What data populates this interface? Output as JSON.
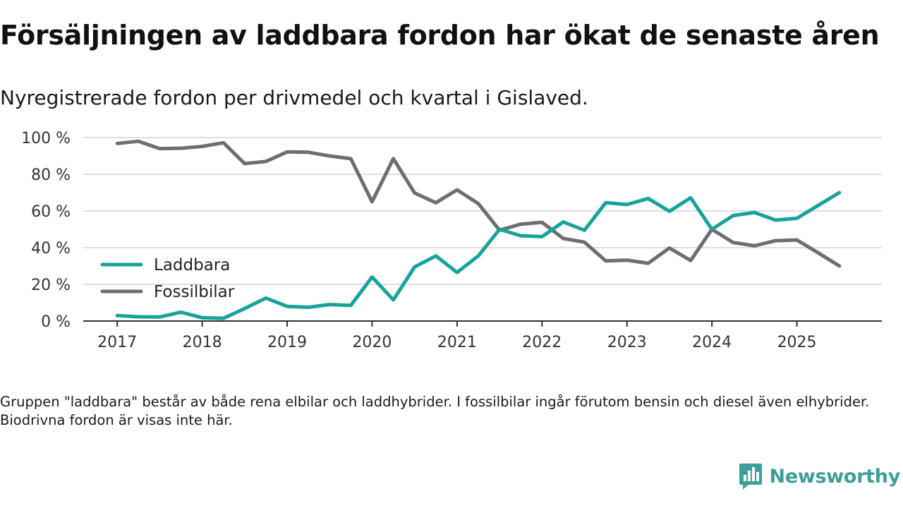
{
  "header": {
    "title": "Försäljningen av laddbara fordon har ökat de senaste åren",
    "subtitle": "Nyregistrerade fordon per drivmedel och kvartal i Gislaved."
  },
  "footnote": "Gruppen \"laddbara\" består av både rena elbilar och laddhybrider. I fossilbilar ingår förutom bensin och diesel även elhybrider. Biodrivna fordon är visas inte här.",
  "brand": {
    "name": "Newsworthy",
    "icon": "newsworthy-logo-icon"
  },
  "colors": {
    "laddbara": "#17a398",
    "fossil": "#6e6c75",
    "grid": "#dedede",
    "axis": "#333333"
  },
  "chart_data": {
    "type": "line",
    "title": "Försäljningen av laddbara fordon har ökat de senaste åren",
    "subtitle": "Nyregistrerade fordon per drivmedel och kvartal i Gislaved.",
    "xlabel": "",
    "ylabel": "",
    "ylim": [
      0,
      100
    ],
    "y_ticks": [
      0,
      20,
      40,
      60,
      80,
      100
    ],
    "y_tick_labels": [
      "0 %",
      "20 %",
      "40 %",
      "60 %",
      "80 %",
      "100 %"
    ],
    "x_ticks": [
      2017,
      2018,
      2019,
      2020,
      2021,
      2022,
      2023,
      2024,
      2025
    ],
    "x_tick_labels": [
      "2017",
      "2018",
      "2019",
      "2020",
      "2021",
      "2022",
      "2023",
      "2024",
      "2025"
    ],
    "x_range": [
      2016.6,
      2026.0
    ],
    "grid": true,
    "legend_position": "left-middle",
    "x": [
      2017.0,
      2017.25,
      2017.5,
      2017.75,
      2018.0,
      2018.25,
      2018.5,
      2018.75,
      2019.0,
      2019.25,
      2019.5,
      2019.75,
      2020.0,
      2020.25,
      2020.5,
      2020.75,
      2021.0,
      2021.25,
      2021.5,
      2021.75,
      2022.0,
      2022.25,
      2022.5,
      2022.75,
      2023.0,
      2023.25,
      2023.5,
      2023.75,
      2024.0,
      2024.25,
      2024.5,
      2024.75,
      2025.0,
      2025.25,
      2025.5
    ],
    "series": [
      {
        "name": "Laddbara",
        "color": "#17a398",
        "values": [
          3,
          2.3,
          2.2,
          4.8,
          1.8,
          1.5,
          6.8,
          12.5,
          8,
          7.5,
          9,
          8.5,
          24,
          11.5,
          29.5,
          35.5,
          26.5,
          35.5,
          50,
          46.5,
          46,
          54,
          49.5,
          64.5,
          63.5,
          66.8,
          59.8,
          67.2,
          50,
          57.5,
          59.2,
          55,
          56,
          63,
          70
        ]
      },
      {
        "name": "Fossilbilar",
        "color": "#6e6c75",
        "values": [
          96.8,
          98,
          94,
          94.2,
          95.2,
          97.2,
          85.8,
          87,
          92.2,
          92,
          90,
          88.5,
          65,
          88.5,
          69.8,
          64.5,
          71.5,
          64,
          49.5,
          52.8,
          53.8,
          45,
          43,
          32.8,
          33.2,
          31.5,
          39.8,
          33,
          50,
          42.8,
          41,
          43.8,
          44.2,
          37.2,
          30
        ]
      }
    ]
  }
}
